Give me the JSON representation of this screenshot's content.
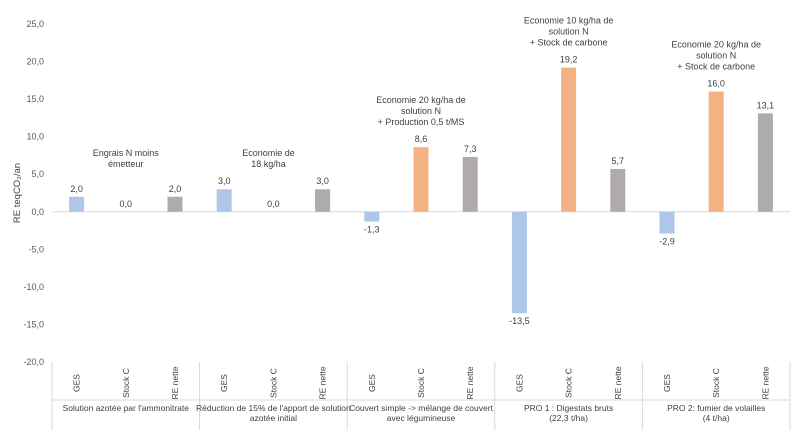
{
  "chart_data": {
    "type": "bar",
    "ylabel": "RE teqCO₂/an",
    "ylim": [
      -20,
      25
    ],
    "yticks": [
      "-20,0",
      "-15,0",
      "-10,0",
      "-5,0",
      "0,0",
      "5,0",
      "10,0",
      "15,0",
      "20,0",
      "25,0"
    ],
    "ytick_values": [
      -20,
      -15,
      -10,
      -5,
      0,
      5,
      10,
      15,
      20,
      25
    ],
    "grid": false,
    "categories": [
      "GES",
      "Stock C",
      "RE nette"
    ],
    "colors": {
      "GES": "#aec6e8",
      "Stock C": "#f4b183",
      "RE nette": "#b0abab"
    },
    "groups": [
      {
        "name": [
          "Solution azotée par l'ammonitrate"
        ],
        "annotation": [
          "Engrais N moins",
          "émetteur"
        ],
        "values": [
          2.0,
          0.0,
          2.0
        ],
        "labels": [
          "2,0",
          "0,0",
          "2,0"
        ]
      },
      {
        "name": [
          "Réduction de 15% de l'apport de solution",
          "azotée initial"
        ],
        "annotation": [
          "Economie de",
          "18 kg/ha"
        ],
        "values": [
          3.0,
          0.0,
          3.0
        ],
        "labels": [
          "3,0",
          "0,0",
          "3,0"
        ]
      },
      {
        "name": [
          "Couvert simple -> mélange de couvert",
          "avec légumineuse"
        ],
        "annotation": [
          "Economie 20 kg/ha de",
          "solution N",
          "+ Production 0,5 t/MS"
        ],
        "values": [
          -1.3,
          8.6,
          7.3
        ],
        "labels": [
          "-1,3",
          "8,6",
          "7,3"
        ]
      },
      {
        "name": [
          "PRO 1 : Digestats bruts",
          "(22,3  t/ha)"
        ],
        "annotation": [
          "Economie 10 kg/ha de",
          "solution N",
          "+ Stock de carbone"
        ],
        "values": [
          -13.5,
          19.2,
          5.7
        ],
        "labels": [
          "-13,5",
          "19,2",
          "5,7"
        ]
      },
      {
        "name": [
          "PRO 2: fumier de volailles",
          "(4 t/ha)"
        ],
        "annotation": [
          "Economie 20 kg/ha de",
          "solution N",
          "+ Stock de carbone"
        ],
        "values": [
          -2.9,
          16.0,
          13.1
        ],
        "labels": [
          "-2,9",
          "16,0",
          "13,1"
        ]
      }
    ]
  }
}
